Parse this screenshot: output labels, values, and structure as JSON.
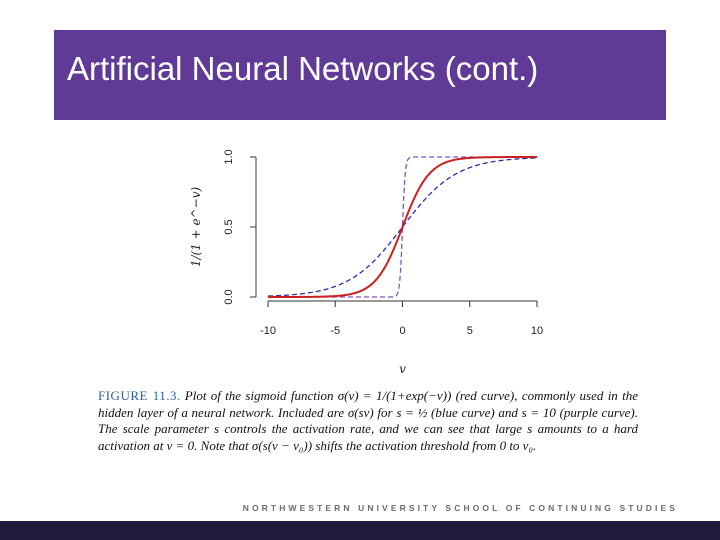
{
  "slide": {
    "title": "Artificial Neural Networks (cont.)",
    "caption_label": "FIGURE 11.3.",
    "caption_text": "Plot of the sigmoid function σ(v) = 1/(1+exp(−v)) (red curve), commonly used in the hidden layer of a neural network. Included are σ(sv) for s = ½ (blue curve) and s = 10 (purple curve). The scale parameter s controls the activation rate, and we can see that large s amounts to a hard activation at v = 0. Note that σ(s(v − v₀)) shifts the activation threshold from 0 to v₀.",
    "footer": "NORTHWESTERN UNIVERSITY SCHOOL OF CONTINUING STUDIES"
  },
  "colors": {
    "title_bar": "#5f3a96",
    "bottom_bar": "#231b3f",
    "red": "#cc1f1f",
    "blue": "#2b2fb0",
    "purple": "#7d55c8"
  },
  "chart_data": {
    "type": "line",
    "title": "",
    "xlabel": "v",
    "ylabel": "1/(1 + e^{−v})",
    "xlim": [
      -10,
      10
    ],
    "ylim": [
      0,
      1
    ],
    "xticks": [
      -10,
      -5,
      0,
      5,
      10
    ],
    "yticks": [
      0.0,
      0.5,
      1.0
    ],
    "xtick_labels": [
      "-10",
      "-5",
      "0",
      "5",
      "10"
    ],
    "ytick_labels": [
      "0.0",
      "0.5",
      "1.0"
    ],
    "grid": false,
    "x": [
      -10,
      -8,
      -6,
      -5,
      -4,
      -3,
      -2,
      -1.5,
      -1,
      -0.5,
      -0.25,
      0,
      0.25,
      0.5,
      1,
      1.5,
      2,
      3,
      4,
      5,
      6,
      8,
      10
    ],
    "series": [
      {
        "name": "",
        "scale": 1,
        "style": "solid",
        "values": [
          5e-05,
          0.0003,
          0.0025,
          0.0067,
          0.018,
          0.047,
          0.119,
          0.182,
          0.269,
          0.378,
          0.438,
          0.5,
          0.562,
          0.622,
          0.731,
          0.818,
          0.881,
          0.953,
          0.982,
          0.9933,
          0.9975,
          0.9997,
          0.99995
        ]
      },
      {
        "name": "",
        "scale": 0.5,
        "style": "dashed",
        "values": [
          0.0067,
          0.018,
          0.047,
          0.076,
          0.119,
          0.182,
          0.269,
          0.321,
          0.378,
          0.438,
          0.469,
          0.5,
          0.531,
          0.562,
          0.622,
          0.679,
          0.731,
          0.818,
          0.881,
          0.924,
          0.953,
          0.982,
          0.9933
        ]
      },
      {
        "name": "",
        "scale": 10,
        "style": "dashed",
        "values": [
          0.0,
          0.0,
          0.0,
          0.0,
          0.0,
          0.0,
          0.0,
          0.0,
          5e-05,
          0.0067,
          0.076,
          0.5,
          0.924,
          0.9933,
          0.99995,
          1.0,
          1.0,
          1.0,
          1.0,
          1.0,
          1.0,
          1.0,
          1.0
        ]
      }
    ]
  }
}
